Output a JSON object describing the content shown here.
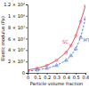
{
  "chart_data": {
    "type": "line",
    "x_label": "Particle volume fraction",
    "y_label": "Elastic modulus (Pa)",
    "x": [
      0,
      0.1,
      0.2,
      0.3,
      0.4,
      0.45,
      0.5,
      0.55,
      0.6
    ],
    "series": [
      {
        "name": "SC",
        "color": "#e0405a",
        "marker": "circle",
        "line_style": "solid",
        "values": [
          5000000,
          8000000,
          13000000,
          22000000,
          36000000,
          48000000,
          65000000,
          90000000,
          118000000
        ]
      },
      {
        "name": "MT",
        "color": "#3a6fd8",
        "marker": "triangle",
        "line_style": "dashed",
        "values": [
          3000000,
          5000000,
          8000000,
          13000000,
          22000000,
          30000000,
          42000000,
          62000000,
          95000000
        ]
      }
    ],
    "xlim": [
      0,
      0.6
    ],
    "xticks": [
      0,
      0.1,
      0.2,
      0.3,
      0.4,
      0.5,
      0.6
    ],
    "ylim": [
      0,
      120000000
    ],
    "yticks": [
      0,
      {
        "value": 20000000,
        "label": "2 × 10⁷"
      },
      {
        "value": 40000000,
        "label": "4 × 10⁷"
      },
      {
        "value": 60000000,
        "label": "6 × 10⁷"
      },
      {
        "value": 80000000,
        "label": "8 × 10⁷"
      },
      {
        "value": 100000000,
        "label": "1 × 10⁸"
      },
      {
        "value": 120000000,
        "label": "1.2 × 10⁸"
      }
    ],
    "grid": false
  }
}
